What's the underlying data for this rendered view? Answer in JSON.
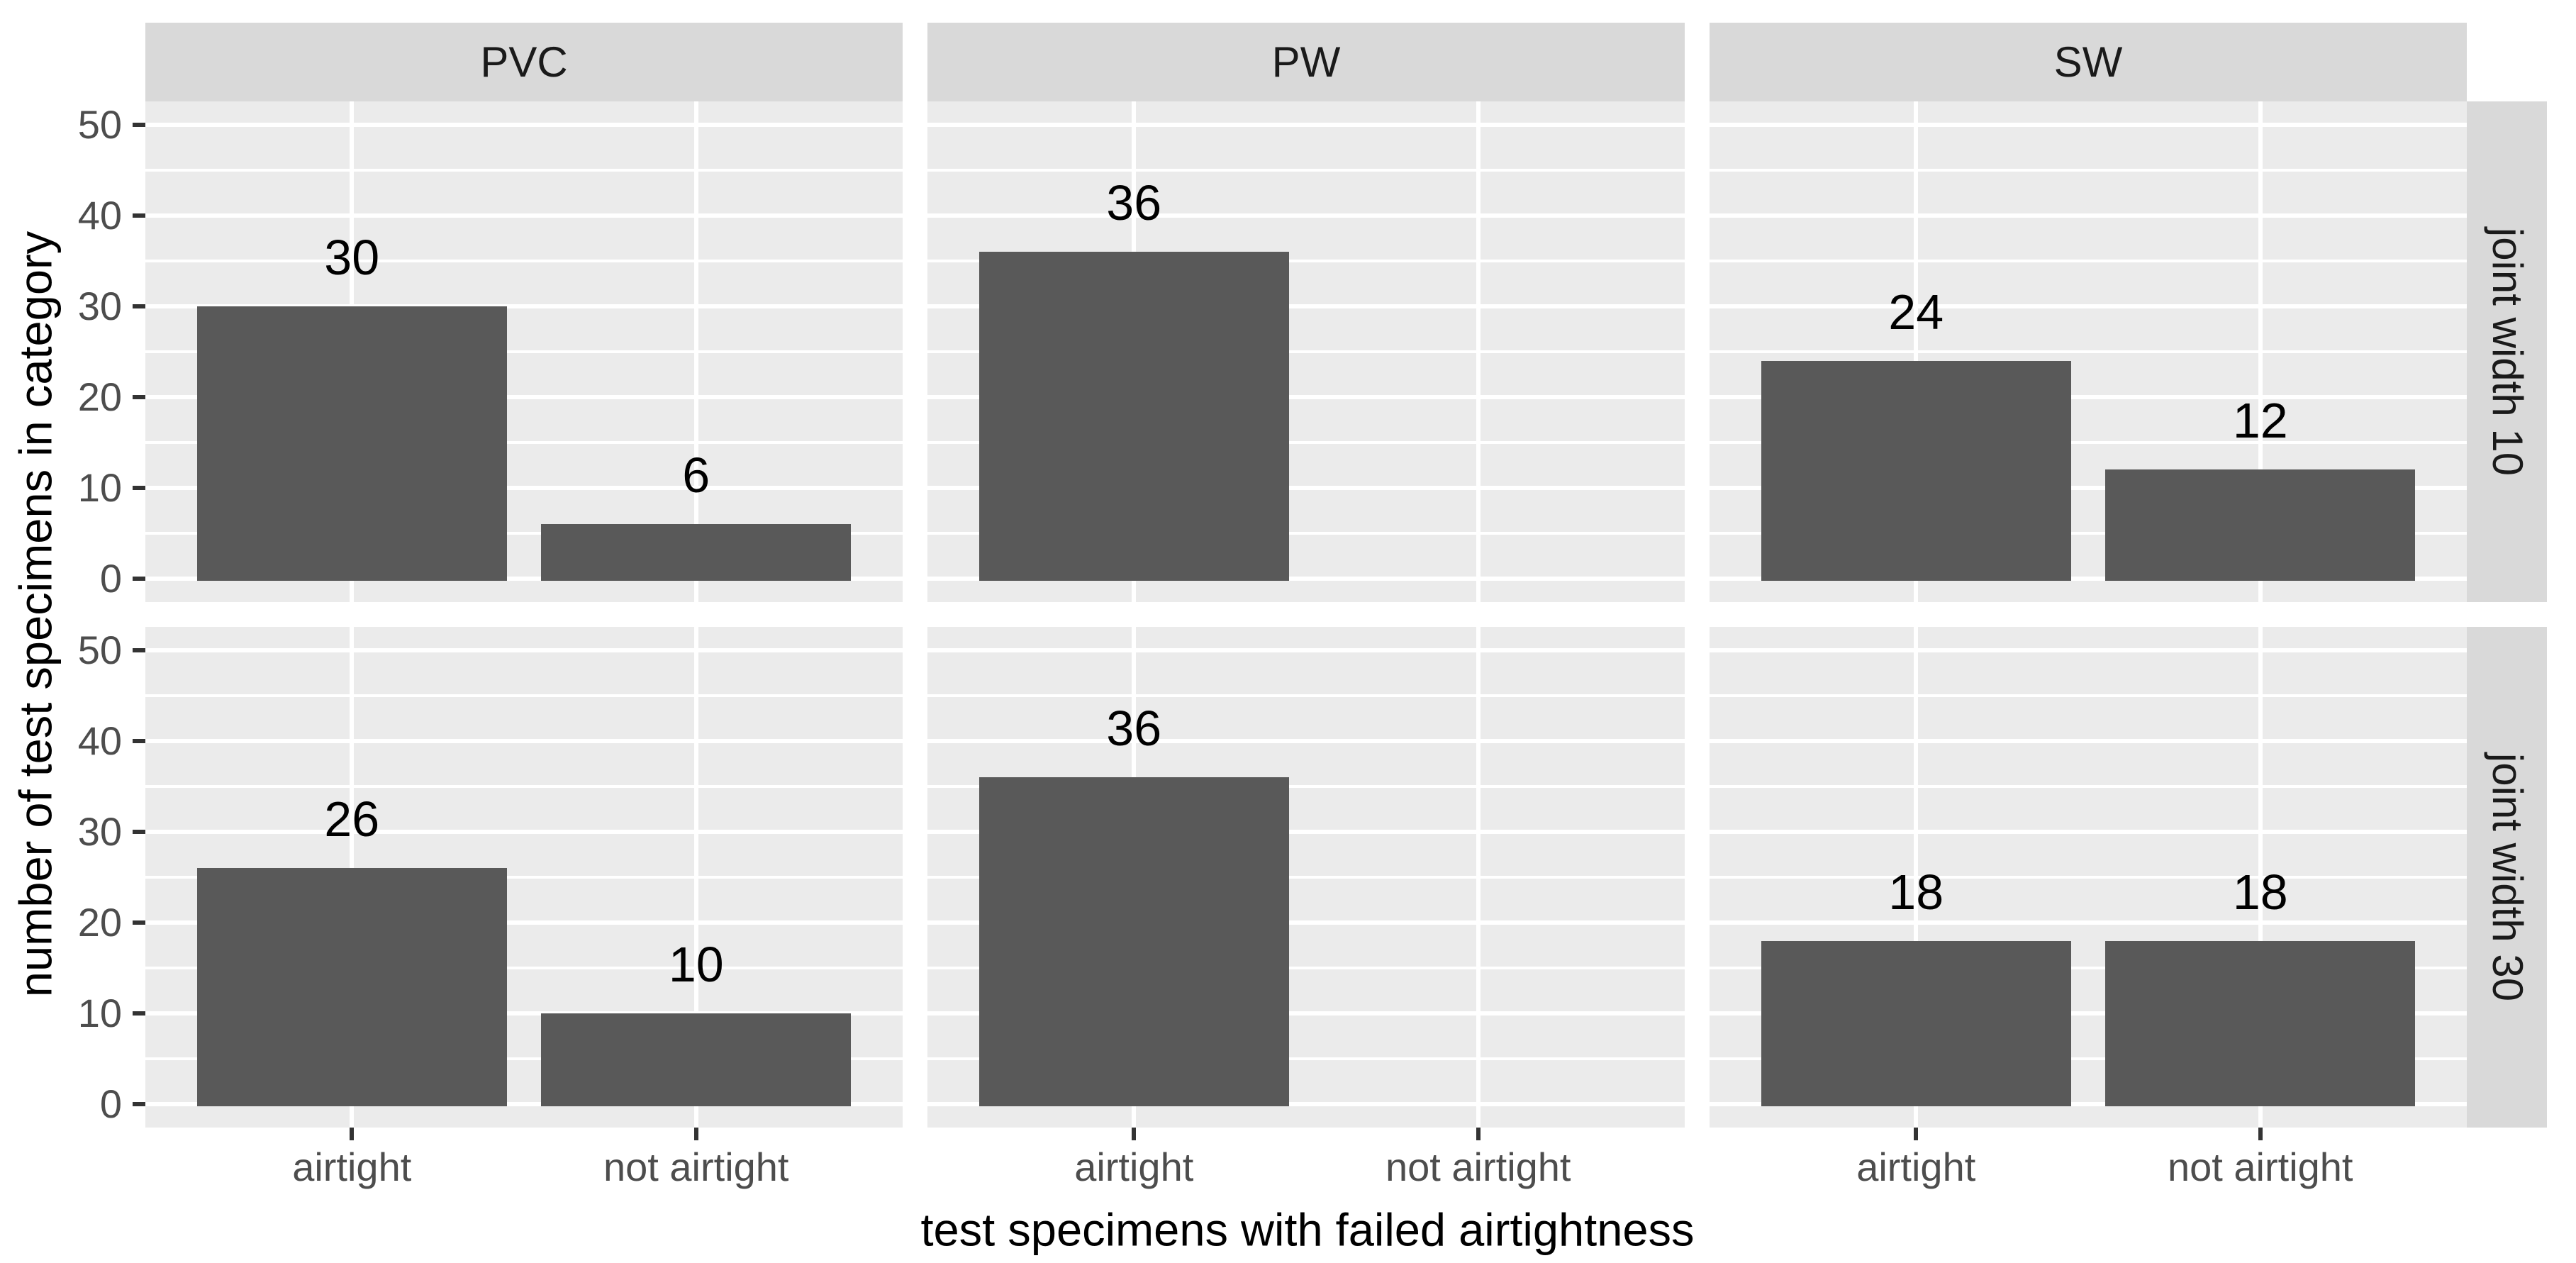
{
  "chart_data": {
    "type": "bar",
    "title": "",
    "xlabel": "test specimens with failed airtightness",
    "ylabel": "number of test specimens in category",
    "categories": [
      "airtight",
      "not airtight"
    ],
    "facet_columns": [
      "PVC",
      "PW",
      "SW"
    ],
    "facet_rows": [
      "joint width 10",
      "joint width 30"
    ],
    "y_ticks": [
      "0",
      "10",
      "20",
      "30",
      "40",
      "50"
    ],
    "y_minor_ticks": [
      5,
      15,
      25,
      35,
      45
    ],
    "ylim": [
      0,
      50
    ],
    "grid": "on",
    "legend": "none",
    "panels": [
      {
        "col": "PVC",
        "row": "joint width 10",
        "values": [
          30,
          null
        ],
        "labels": [
          "30",
          ""
        ]
      },
      {
        "col": "PVC",
        "row": "joint width 10",
        "note": "second category",
        "values": [
          null,
          6
        ],
        "labels": [
          "",
          "6"
        ]
      },
      {
        "col": "PW",
        "row": "joint width 10",
        "values": [
          36,
          null
        ],
        "labels": [
          "36",
          ""
        ]
      },
      {
        "col": "SW",
        "row": "joint width 10",
        "values": [
          24,
          12
        ],
        "labels": [
          "24",
          "12"
        ]
      },
      {
        "col": "PVC",
        "row": "joint width 30",
        "values": [
          26,
          10
        ],
        "labels": [
          "26",
          "10"
        ]
      },
      {
        "col": "PW",
        "row": "joint width 30",
        "values": [
          36,
          null
        ],
        "labels": [
          "36",
          ""
        ]
      },
      {
        "col": "SW",
        "row": "joint width 30",
        "values": [
          18,
          18
        ],
        "labels": [
          "18",
          "18"
        ]
      }
    ],
    "matrix": {
      "rows": [
        "joint width 10",
        "joint width 30"
      ],
      "cols": [
        "PVC",
        "PW",
        "SW"
      ],
      "values": [
        [
          [
            30,
            6
          ],
          [
            36,
            null
          ],
          [
            24,
            12
          ]
        ],
        [
          [
            26,
            10
          ],
          [
            36,
            null
          ],
          [
            18,
            18
          ]
        ]
      ]
    },
    "colors": {
      "bar_fill": "#595959",
      "panel_background": "#EBEBEB",
      "strip_background": "#D9D9D9",
      "gridline": "#FFFFFF",
      "tick_mark": "#333333",
      "axis_text": "#4D4D4D",
      "axis_title_text": "#000000",
      "bar_label_text": "#000000",
      "strip_text": "#1A1A1A"
    }
  }
}
